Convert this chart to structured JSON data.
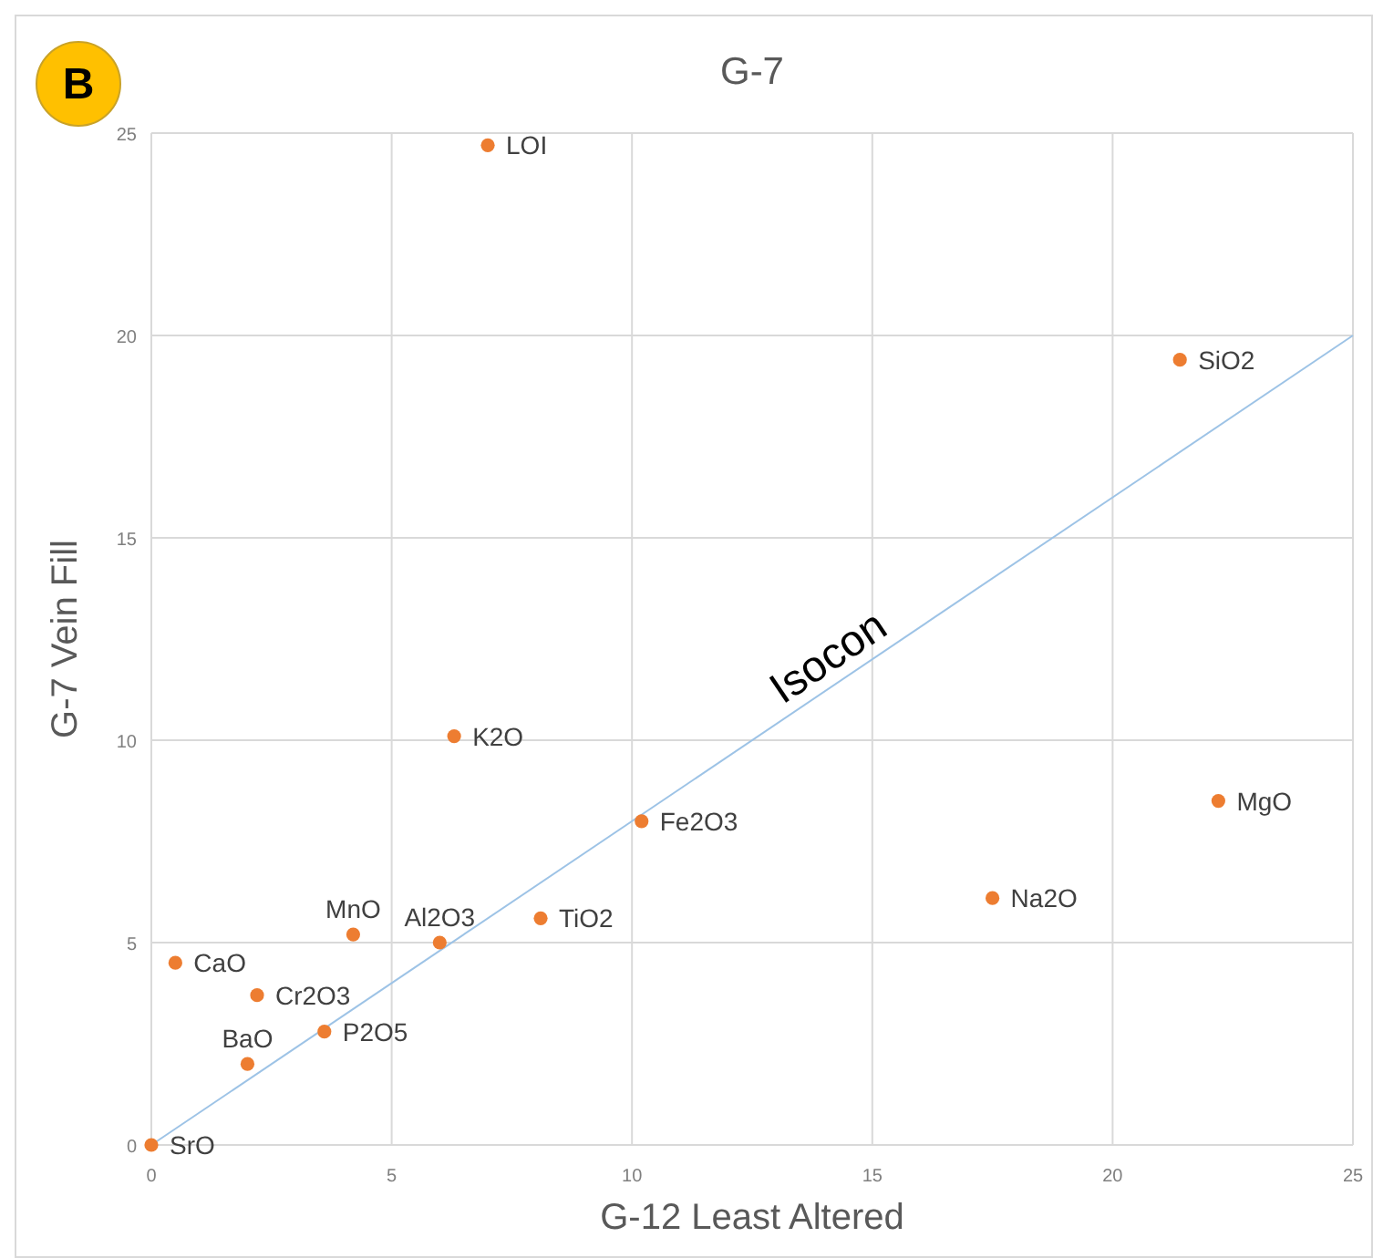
{
  "chart_data": {
    "type": "scatter",
    "title": "G-7",
    "xlabel": "G-12 Least Altered",
    "ylabel": "G-7 Vein Fill",
    "xlim": [
      0,
      25
    ],
    "ylim": [
      0,
      25
    ],
    "xticks": [
      0,
      5,
      10,
      15,
      20,
      25
    ],
    "yticks": [
      0,
      5,
      10,
      15,
      20,
      25
    ],
    "grid": true,
    "series": [
      {
        "marker": "circle",
        "color": "#ed7d31",
        "x": [
          7.0,
          21.4,
          6.3,
          10.2,
          22.2,
          17.5,
          8.1,
          6.0,
          4.2,
          0.5,
          2.2,
          3.6,
          2.0,
          0
        ],
        "values": [
          24.7,
          19.4,
          10.1,
          8.0,
          8.5,
          6.1,
          5.6,
          5.0,
          5.2,
          4.5,
          3.7,
          2.8,
          2.0,
          0
        ]
      },
      {
        "type": "line",
        "marker": "none",
        "name": "Isocon",
        "color": "#9dc3e6",
        "x": [
          0,
          25
        ],
        "values": [
          0,
          20
        ]
      }
    ],
    "annotations": [
      "B",
      {
        "text": "LOI",
        "x": 7.0,
        "y": 24.7
      },
      {
        "text": "SiO2",
        "x": 21.4,
        "y": 19.4
      },
      {
        "text": "K2O",
        "x": 6.3,
        "y": 10.1
      },
      {
        "text": "Fe2O3",
        "x": 10.2,
        "y": 8.0
      },
      {
        "text": "MgO",
        "x": 22.2,
        "y": 8.5
      },
      {
        "text": "Na2O",
        "x": 17.5,
        "y": 6.1
      },
      {
        "text": "TiO2",
        "x": 8.1,
        "y": 5.6
      },
      {
        "text": "Al2O3",
        "x": 6.0,
        "y": 5.0
      },
      {
        "text": "MnO",
        "x": 4.2,
        "y": 5.2
      },
      {
        "text": "CaO",
        "x": 0.5,
        "y": 4.5
      },
      {
        "text": "Cr2O3",
        "x": 2.2,
        "y": 3.7
      },
      {
        "text": "P2O5",
        "x": 3.6,
        "y": 2.8
      },
      {
        "text": "BaO",
        "x": 2.0,
        "y": 2.0
      },
      {
        "text": "SrO",
        "x": 0,
        "y": 0
      }
    ]
  }
}
